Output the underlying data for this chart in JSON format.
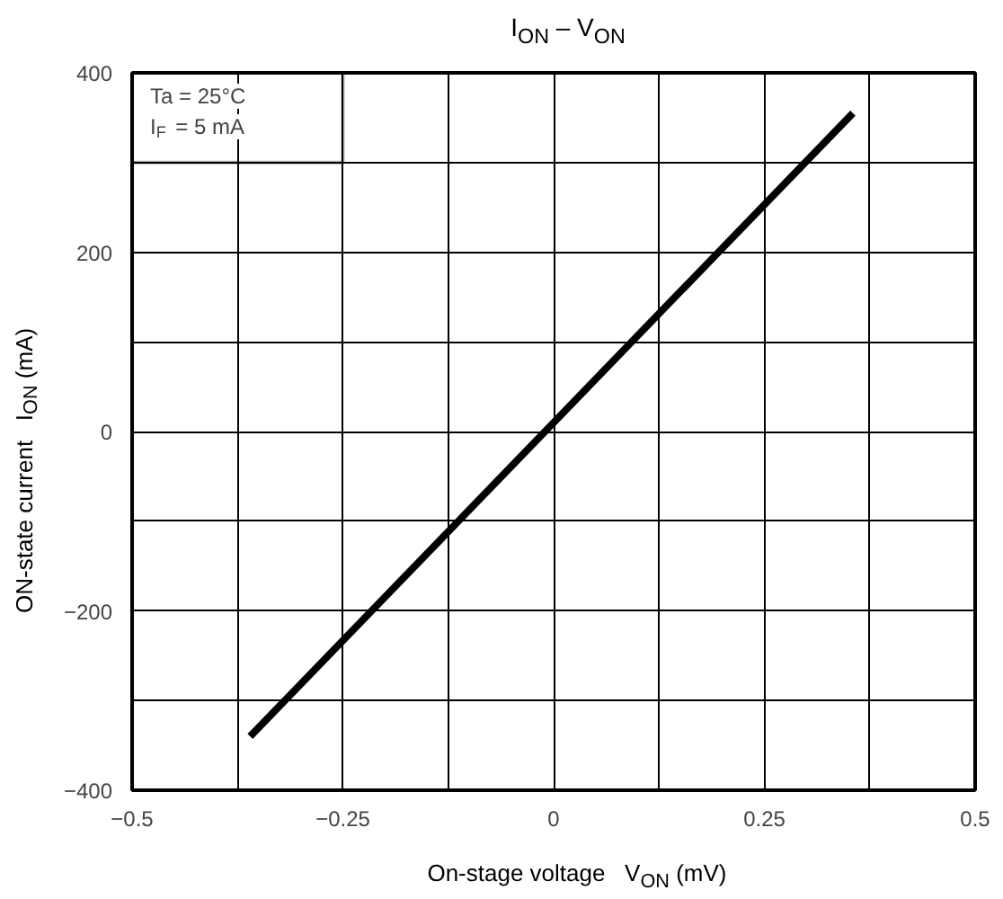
{
  "chart_data": {
    "type": "line",
    "title": "I$_{ON}$ – V$_{ON}$",
    "xlabel": "On-stage voltage   V$_{ON}$ (mV)",
    "ylabel": "ON-state current   I$_{ON}$ (mA)",
    "x": [
      -0.36,
      0.355
    ],
    "series": [
      {
        "color": "#000000",
        "values": [
          -340,
          355
        ]
      }
    ],
    "xlim": [
      -0.5,
      0.5
    ],
    "ylim": [
      -400,
      400
    ],
    "xticks": [
      -0.5,
      {
        "value": -0.375,
        "label": null
      },
      -0.25,
      {
        "value": -0.125,
        "label": null
      },
      0,
      {
        "value": 0.125,
        "label": null
      },
      0.25,
      {
        "value": 0.375,
        "label": null
      },
      0.5
    ],
    "yticks": [
      -400,
      {
        "value": -300,
        "label": null
      },
      -200,
      {
        "value": -100,
        "label": null
      },
      0,
      {
        "value": 100,
        "label": null
      },
      200,
      {
        "value": 300,
        "label": null
      },
      400
    ],
    "grid": true,
    "marker": "none",
    "line_style": "solid",
    "annotations": [
      "Ta = 25°C\nI$_{F}$ = 5 mA"
    ]
  }
}
